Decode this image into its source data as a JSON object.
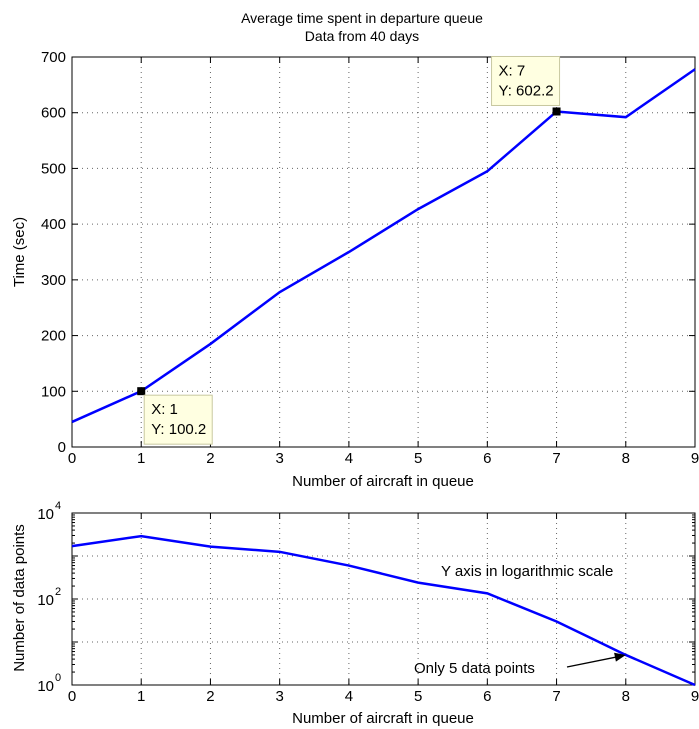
{
  "chart_data": [
    {
      "type": "line",
      "title": [
        "Average time spent in departure queue",
        "Data from 40 days"
      ],
      "xlabel": "Number of aircraft in queue",
      "ylabel": "Time (sec)",
      "xlim": [
        0,
        9
      ],
      "ylim": [
        0,
        700
      ],
      "yscale": "linear",
      "grid": true,
      "x_ticks": [
        "0",
        "1",
        "2",
        "3",
        "4",
        "5",
        "6",
        "7",
        "8",
        "9"
      ],
      "y_ticks": [
        "0",
        "100",
        "200",
        "300",
        "400",
        "500",
        "600",
        "700"
      ],
      "line_color": "#0000ff",
      "x": [
        0,
        1,
        2,
        3,
        4,
        5,
        6,
        7,
        8,
        9
      ],
      "y": [
        45,
        100.2,
        185,
        278,
        350,
        427,
        495,
        602.2,
        592,
        678
      ],
      "datatips": [
        {
          "x": 1,
          "y": 100.2,
          "lines": [
            "X: 1",
            "Y: 100.2"
          ]
        },
        {
          "x": 7,
          "y": 602.2,
          "lines": [
            "X: 7",
            "Y: 602.2"
          ]
        }
      ]
    },
    {
      "type": "line",
      "xlabel": "Number of aircraft in queue",
      "ylabel": "Number of data points",
      "xlim": [
        0,
        9
      ],
      "ylim": [
        1,
        10000
      ],
      "yscale": "log",
      "grid": true,
      "x_ticks": [
        "0",
        "1",
        "2",
        "3",
        "4",
        "5",
        "6",
        "7",
        "8",
        "9"
      ],
      "y_ticks": [
        {
          "base": "10",
          "exp": "0"
        },
        {
          "base": "10",
          "exp": "2"
        },
        {
          "base": "10",
          "exp": "4"
        }
      ],
      "line_color": "#0000ff",
      "x": [
        0,
        1,
        2,
        3,
        4,
        5,
        6,
        7,
        8,
        9
      ],
      "y": [
        1700,
        2900,
        1650,
        1250,
        600,
        240,
        135,
        30,
        5,
        1
      ],
      "annotations": [
        {
          "text": "Y axis in logarithmic scale"
        },
        {
          "text": "Only 5 data points",
          "arrow_to": {
            "x": 8,
            "y": 5
          }
        }
      ]
    }
  ]
}
